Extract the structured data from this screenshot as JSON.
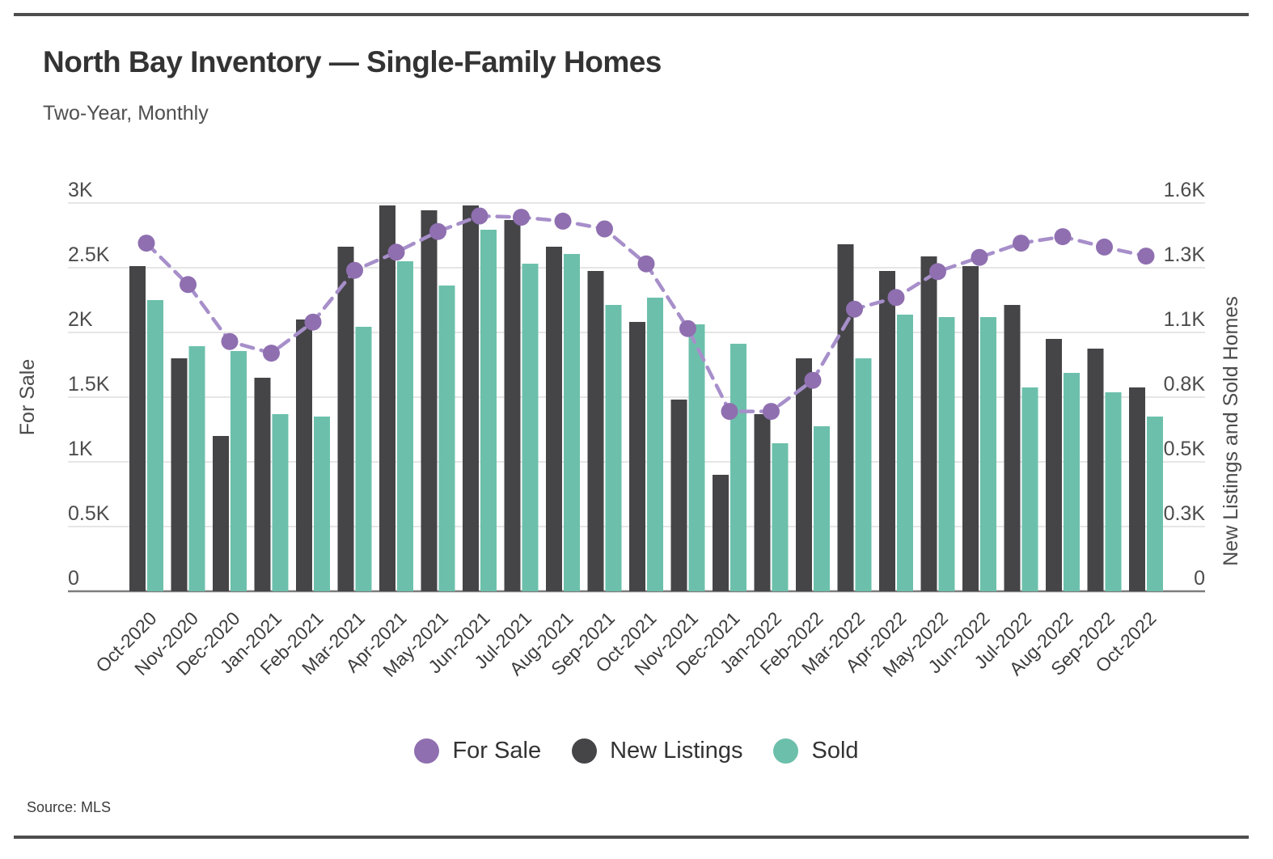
{
  "header": {
    "title": "North Bay Inventory — Single-Family Homes",
    "subtitle": "Two-Year, Monthly"
  },
  "source": {
    "text": "Source: MLS"
  },
  "legend": [
    {
      "label": "For Sale",
      "color": "#8f6fb0"
    },
    {
      "label": "New Listings",
      "color": "#454548"
    },
    {
      "label": "Sold",
      "color": "#6cc0ab"
    }
  ],
  "chart_data": {
    "type": "bar",
    "title": "North Bay Inventory — Single-Family Homes",
    "subtitle": "Two-Year, Monthly",
    "grid": true,
    "legend_position": "bottom",
    "categories": [
      "Oct-2020",
      "Nov-2020",
      "Dec-2020",
      "Jan-2021",
      "Feb-2021",
      "Mar-2021",
      "Apr-2021",
      "May-2021",
      "Jun-2021",
      "Jul-2021",
      "Aug-2021",
      "Sep-2021",
      "Oct-2021",
      "Nov-2021",
      "Dec-2021",
      "Jan-2022",
      "Feb-2022",
      "Mar-2022",
      "Apr-2022",
      "May-2022",
      "Jun-2022",
      "Jul-2022",
      "Aug-2022",
      "Sep-2022",
      "Oct-2022"
    ],
    "series": [
      {
        "name": "For Sale",
        "type": "line",
        "axis": "left",
        "point_color": "#8f6fb0",
        "line_color": "#a78fca",
        "values": [
          2690,
          2370,
          1930,
          1840,
          2080,
          2480,
          2620,
          2780,
          2900,
          2890,
          2860,
          2800,
          2530,
          2030,
          1390,
          1390,
          1630,
          2180,
          2270,
          2470,
          2580,
          2690,
          2740,
          2660,
          2590
        ]
      },
      {
        "name": "New Listings",
        "type": "bar",
        "axis": "right",
        "color": "#454548",
        "values": [
          1340,
          960,
          640,
          880,
          1120,
          1420,
          1590,
          1570,
          1590,
          1530,
          1420,
          1320,
          1110,
          790,
          480,
          730,
          960,
          1430,
          1320,
          1380,
          1340,
          1180,
          1040,
          1000,
          840
        ]
      },
      {
        "name": "Sold",
        "type": "bar",
        "axis": "right",
        "color": "#6cc0ab",
        "values": [
          1200,
          1010,
          990,
          730,
          720,
          1090,
          1360,
          1260,
          1490,
          1350,
          1390,
          1180,
          1210,
          1100,
          1020,
          610,
          680,
          960,
          1140,
          1130,
          1130,
          840,
          900,
          820,
          720
        ]
      }
    ],
    "left_axis": {
      "label": "For Sale",
      "max": 3000,
      "min": 0,
      "gridline_values": [
        3000,
        2500,
        2000,
        1500,
        1000,
        500,
        0
      ],
      "tick_labels": [
        "3K",
        "2.5K",
        "2K",
        "1.5K",
        "1K",
        "0.5K",
        "0"
      ]
    },
    "right_axis": {
      "label": "New Listings and Sold Homes",
      "max": 1600,
      "min": 0,
      "tick_labels": [
        "1.6K",
        "1.3K",
        "1.1K",
        "0.8K",
        "0.5K",
        "0.3K",
        "0"
      ]
    }
  },
  "style": {
    "grid_color": "#e3e3e3",
    "baseline_color": "#7d7d7d",
    "tick_text_color": "#4c4c4c",
    "month_text_color": "#3d3d3d",
    "axis_title_color": "#4c4c4c"
  }
}
